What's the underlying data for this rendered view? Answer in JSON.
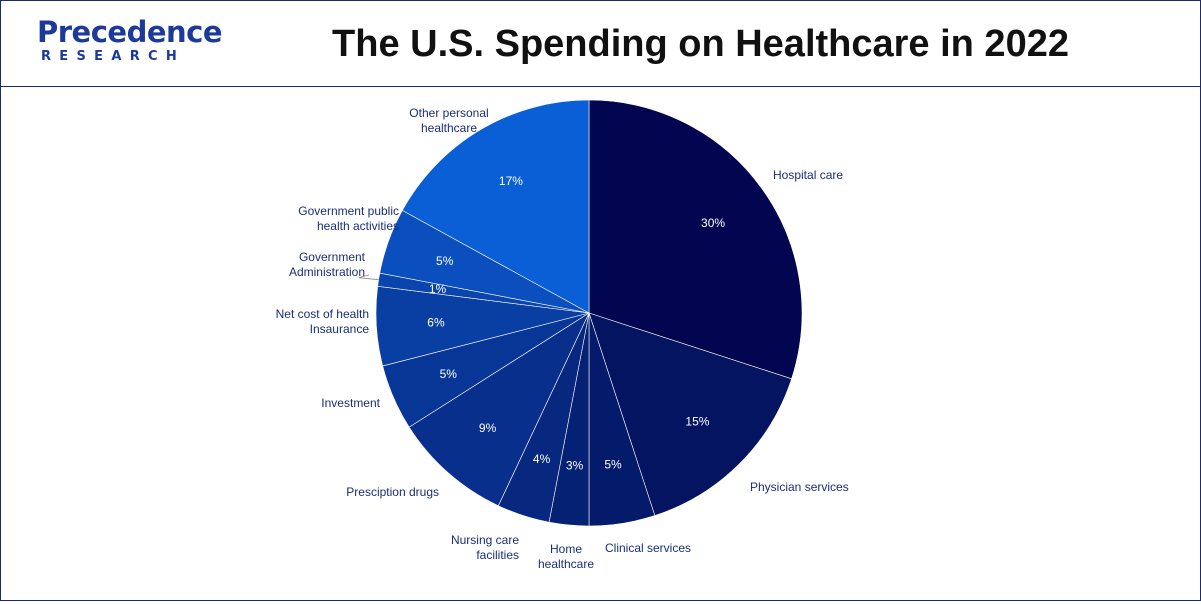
{
  "header": {
    "logo_main": "Precedence",
    "logo_sub": "RESEARCH",
    "title": "The U.S. Spending on Healthcare in 2022"
  },
  "colors": {
    "border": "#1b2a6b",
    "category_label": "#1a2e7a",
    "value_label": "#ffffff",
    "logo": "#1d3a9a"
  },
  "chart_data": {
    "type": "pie",
    "title": "The U.S. Spending on Healthcare in 2022",
    "start_angle_deg": 0,
    "direction": "clockwise",
    "legend": "none",
    "slices": [
      {
        "label": [
          "Hospital care"
        ],
        "value": 30,
        "value_label": "30%",
        "color": "#020650"
      },
      {
        "label": [
          "Physician services"
        ],
        "value": 15,
        "value_label": "15%",
        "color": "#041461"
      },
      {
        "label": [
          "Clinical services"
        ],
        "value": 5,
        "value_label": "5%",
        "color": "#041b6b"
      },
      {
        "label": [
          "Home",
          "healthcare"
        ],
        "value": 3,
        "value_label": "3%",
        "color": "#052174"
      },
      {
        "label": [
          "Nursing care",
          "facilities"
        ],
        "value": 4,
        "value_label": "4%",
        "color": "#07287e"
      },
      {
        "label": [
          "Presciption drugs"
        ],
        "value": 9,
        "value_label": "9%",
        "color": "#072f8b"
      },
      {
        "label": [
          "Investment"
        ],
        "value": 5,
        "value_label": "5%",
        "color": "#083696"
      },
      {
        "label": [
          "Net cost of health",
          "Insaurance"
        ],
        "value": 6,
        "value_label": "6%",
        "color": "#093ea3"
      },
      {
        "label": [
          "Government",
          "Administration"
        ],
        "value": 1,
        "value_label": "1%",
        "color": "#0a44ad"
      },
      {
        "label": [
          "Government public",
          "health activities"
        ],
        "value": 5,
        "value_label": "5%",
        "color": "#0b4fbe"
      },
      {
        "label": [
          "Other personal",
          "healthcare"
        ],
        "value": 17,
        "value_label": "17%",
        "color": "#0a5fd6"
      }
    ]
  }
}
